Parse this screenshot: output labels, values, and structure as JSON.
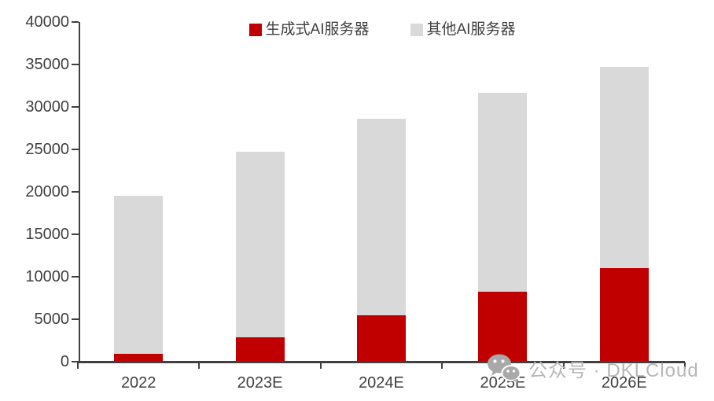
{
  "chart_data": {
    "type": "bar",
    "stacked": true,
    "title": "",
    "xlabel": "",
    "ylabel": "",
    "categories": [
      "2022",
      "2023E",
      "2024E",
      "2025E",
      "2026E"
    ],
    "series": [
      {
        "name": "生成式AI服务器",
        "color": "#c00000",
        "values": [
          900,
          2900,
          5500,
          8200,
          11000
        ]
      },
      {
        "name": "其他AI服务器",
        "color": "#d9d9d9",
        "values": [
          18600,
          21800,
          23100,
          23500,
          23700
        ]
      }
    ],
    "totals": [
      19500,
      24700,
      28600,
      31700,
      34700
    ],
    "ylim": [
      0,
      40000
    ],
    "ytick_step": 5000,
    "ytick_labels": [
      "0",
      "5000",
      "10000",
      "15000",
      "20000",
      "25000",
      "30000",
      "35000",
      "40000"
    ],
    "grid": false,
    "legend_position": "top-center"
  },
  "watermark": {
    "icon": "wechat-icon",
    "text": "公众号 · DKLCloud",
    "color": "#b7b7b7"
  },
  "colors": {
    "axis": "#404040",
    "tick_text": "#404040",
    "series_generative": "#c00000",
    "series_other": "#d9d9d9",
    "background": "#ffffff"
  }
}
